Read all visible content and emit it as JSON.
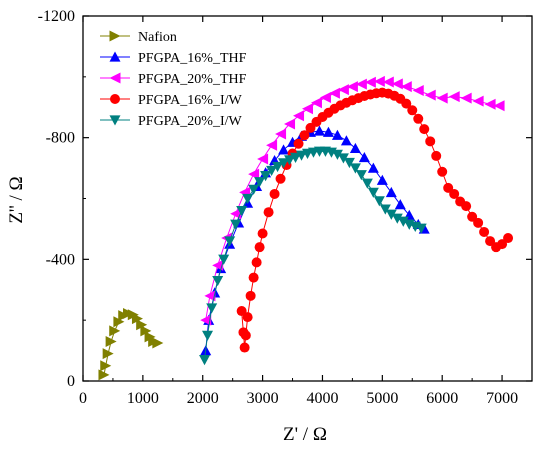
{
  "chart_data": {
    "type": "scatter",
    "title": "",
    "xlabel": "Z' / Ω",
    "ylabel": "Z'' / Ω",
    "xlim": [
      0,
      7500
    ],
    "ylim": [
      0,
      -1200
    ],
    "xticks": [
      0,
      1000,
      2000,
      3000,
      4000,
      5000,
      6000,
      7000
    ],
    "yticks": [
      0,
      -400,
      -800,
      -1200
    ],
    "x_tick_labels": [
      "0",
      "1000",
      "2000",
      "3000",
      "4000",
      "5000",
      "6000",
      "7000"
    ],
    "y_tick_labels": [
      "0",
      "-400",
      "-800",
      "-1200"
    ],
    "legend_position": "top-left",
    "series": [
      {
        "name": "Nafion",
        "color": "#808000",
        "marker": "triangle-right",
        "x": [
          350,
          380,
          420,
          470,
          530,
          600,
          680,
          760,
          840,
          910,
          980,
          1050,
          1120,
          1180,
          1250
        ],
        "y": [
          -20,
          -50,
          -90,
          -130,
          -165,
          -195,
          -215,
          -222,
          -218,
          -205,
          -185,
          -165,
          -145,
          -130,
          -125
        ]
      },
      {
        "name": "PFGPA_16%_THF",
        "color": "#0000ff",
        "marker": "triangle-up",
        "x": [
          2050,
          2100,
          2200,
          2300,
          2450,
          2600,
          2750,
          2900,
          3050,
          3200,
          3350,
          3500,
          3650,
          3800,
          3950,
          4100,
          4250,
          4400,
          4550,
          4700,
          4850,
          5000,
          5150,
          5300,
          5450,
          5600,
          5700
        ],
        "y": [
          -100,
          -200,
          -290,
          -370,
          -450,
          -520,
          -585,
          -640,
          -685,
          -725,
          -760,
          -785,
          -805,
          -818,
          -822,
          -818,
          -808,
          -790,
          -765,
          -735,
          -700,
          -660,
          -620,
          -580,
          -545,
          -515,
          -500
        ]
      },
      {
        "name": "PFGPA_20%_THF",
        "color": "#ff00ff",
        "marker": "triangle-left",
        "x": [
          2050,
          2120,
          2250,
          2400,
          2550,
          2700,
          2850,
          3000,
          3150,
          3300,
          3450,
          3600,
          3750,
          3900,
          4050,
          4200,
          4350,
          4500,
          4650,
          4800,
          4950,
          5100,
          5250,
          5400,
          5600,
          5800,
          6000,
          6200,
          6400,
          6600,
          6800,
          6950
        ],
        "y": [
          -200,
          -280,
          -380,
          -470,
          -550,
          -620,
          -680,
          -730,
          -775,
          -812,
          -845,
          -872,
          -895,
          -915,
          -932,
          -946,
          -958,
          -968,
          -976,
          -982,
          -985,
          -983,
          -977,
          -968,
          -955,
          -940,
          -930,
          -935,
          -930,
          -920,
          -910,
          -905
        ]
      },
      {
        "name": "PFGPA_16%_I/W",
        "color": "#ff0000",
        "marker": "circle",
        "x": [
          2650,
          2680,
          2700,
          2720,
          2750,
          2800,
          2850,
          2900,
          2950,
          3000,
          3100,
          3200,
          3300,
          3400,
          3500,
          3600,
          3700,
          3800,
          3900,
          4000,
          4100,
          4200,
          4300,
          4400,
          4500,
          4600,
          4700,
          4800,
          4900,
          5000,
          5100,
          5200,
          5300,
          5400,
          5500,
          5600,
          5700,
          5800,
          5900,
          6000,
          6100,
          6200,
          6300,
          6400,
          6500,
          6600,
          6700,
          6800,
          6900,
          7000,
          7100
        ],
        "y": [
          -230,
          -160,
          -110,
          -150,
          -210,
          -280,
          -340,
          -390,
          -440,
          -485,
          -555,
          -615,
          -665,
          -710,
          -748,
          -780,
          -808,
          -832,
          -852,
          -868,
          -882,
          -895,
          -906,
          -915,
          -923,
          -930,
          -937,
          -942,
          -946,
          -948,
          -945,
          -938,
          -928,
          -912,
          -890,
          -862,
          -828,
          -788,
          -740,
          -688,
          -635,
          -615,
          -590,
          -575,
          -540,
          -520,
          -490,
          -460,
          -440,
          -450,
          -470
        ]
      },
      {
        "name": "PFGPA_20%_I/W",
        "color": "#008080",
        "marker": "triangle-down",
        "x": [
          2030,
          2080,
          2150,
          2250,
          2350,
          2450,
          2550,
          2650,
          2750,
          2850,
          2950,
          3050,
          3150,
          3250,
          3350,
          3450,
          3550,
          3650,
          3750,
          3850,
          3950,
          4050,
          4150,
          4250,
          4350,
          4450,
          4550,
          4650,
          4750,
          4850,
          4950,
          5050,
          5150,
          5250,
          5350,
          5450,
          5550,
          5650
        ],
        "y": [
          -70,
          -150,
          -240,
          -330,
          -400,
          -460,
          -515,
          -560,
          -600,
          -630,
          -655,
          -675,
          -692,
          -705,
          -717,
          -727,
          -735,
          -742,
          -748,
          -752,
          -755,
          -755,
          -752,
          -745,
          -733,
          -718,
          -700,
          -678,
          -650,
          -620,
          -592,
          -565,
          -548,
          -535,
          -525,
          -515,
          -508,
          -502
        ]
      }
    ]
  }
}
